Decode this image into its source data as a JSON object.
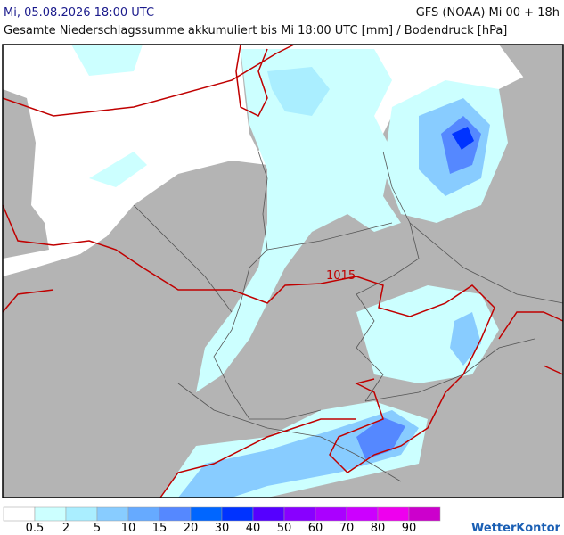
{
  "header": {
    "date": "Mi, 05.08.2026 18:00 UTC",
    "model": "GFS (NOAA) Mi 00 + 18h",
    "subtitle": "Gesamte Niederschlagssumme akkumuliert bis Mi 18:00 UTC [mm] / Bodendruck [hPa]"
  },
  "map": {
    "isobar_label": "1015"
  },
  "legend": {
    "levels": [
      0.5,
      2,
      5,
      10,
      15,
      20,
      30,
      40,
      50,
      60,
      70,
      80,
      90
    ],
    "colors": [
      "#ffffff",
      "#ccffff",
      "#aaeeff",
      "#88ccff",
      "#66aaff",
      "#5588ff",
      "#0066ff",
      "#0033ff",
      "#5500ff",
      "#8800ff",
      "#aa00ff",
      "#cc00ff",
      "#ee00ee",
      "#cc00cc"
    ]
  },
  "brand": "WetterKontor"
}
